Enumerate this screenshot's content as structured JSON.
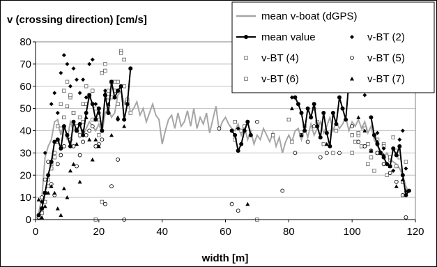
{
  "chart_data": {
    "type": "scatter",
    "ylabel": "v (crossing direction) [cm/s]",
    "xlabel": "width [m]",
    "xlim": [
      0,
      120
    ],
    "ylim": [
      0,
      80
    ],
    "xticks": [
      0,
      20,
      40,
      60,
      80,
      100,
      120
    ],
    "yticks": [
      0,
      10,
      20,
      30,
      40,
      50,
      60,
      70,
      80
    ],
    "grid": "horizontal",
    "legend_position": "top-right",
    "colors": {
      "boat": "#a6a6a6",
      "mean": "#000000",
      "markers": "#000000",
      "grid": "#bfbfbf"
    },
    "series": [
      {
        "name": "mean v-boat (dGPS)",
        "style": "line-gray",
        "x": [
          1,
          2,
          3,
          4,
          5,
          6,
          7,
          8,
          9,
          10,
          11,
          12,
          13,
          14,
          15,
          16,
          17,
          18,
          19,
          20,
          21,
          22,
          23,
          24,
          25,
          26,
          27,
          28,
          29,
          30,
          31,
          32,
          33,
          34,
          35,
          36,
          37,
          38,
          39,
          40,
          41,
          42,
          43,
          44,
          45,
          46,
          47,
          48,
          49,
          50,
          51,
          52,
          53,
          54,
          55,
          56,
          57,
          58,
          59,
          60,
          61,
          62,
          63,
          64,
          65,
          66,
          67,
          68,
          69,
          70,
          71,
          72,
          73,
          74,
          75,
          76,
          77,
          78,
          79,
          80,
          81,
          82,
          83,
          84,
          85,
          86,
          87,
          88,
          89,
          90,
          91,
          92,
          93,
          94,
          95,
          96,
          97,
          98,
          99,
          100,
          101,
          102,
          103,
          104,
          105,
          106,
          107,
          108,
          109,
          110,
          111,
          112,
          113,
          114,
          115,
          116,
          117,
          118
        ],
        "y": [
          3,
          10,
          28,
          33,
          36,
          44,
          45,
          38,
          43,
          36,
          44,
          40,
          42,
          37,
          38,
          41,
          44,
          42,
          40,
          43,
          39,
          48,
          50,
          46,
          48,
          56,
          58,
          52,
          55,
          48,
          50,
          53,
          47,
          50,
          44,
          48,
          52,
          47,
          45,
          34,
          40,
          45,
          47,
          41,
          48,
          42,
          44,
          49,
          42,
          50,
          41,
          46,
          43,
          48,
          39,
          45,
          51,
          40,
          44,
          46,
          43,
          41,
          40,
          43,
          38,
          42,
          36,
          40,
          34,
          38,
          36,
          41,
          38,
          35,
          39,
          33,
          37,
          30,
          35,
          38,
          35,
          40,
          41,
          36,
          42,
          37,
          43,
          38,
          41,
          44,
          39,
          42,
          46,
          40,
          44,
          41,
          43,
          46,
          40,
          44,
          42,
          45,
          41,
          44,
          39,
          42,
          36,
          33,
          31,
          28,
          30,
          27,
          26,
          25,
          23,
          20,
          15,
          12
        ]
      },
      {
        "name": "mean value",
        "style": "line-dots",
        "x": [
          1,
          2,
          3,
          4,
          5,
          6,
          7,
          8,
          9,
          10,
          11,
          12,
          13,
          14,
          15,
          16,
          17,
          18,
          19,
          20,
          21,
          22,
          23,
          24,
          25,
          26,
          27,
          28,
          29,
          30,
          62,
          63,
          64,
          65,
          66,
          67,
          68,
          82,
          83,
          84,
          85,
          86,
          87,
          88,
          89,
          90,
          91,
          92,
          93,
          94,
          95,
          96,
          97,
          98,
          99,
          106,
          107,
          108,
          109,
          110,
          111,
          112,
          113,
          114,
          115,
          116,
          117,
          118
        ],
        "y": [
          2,
          5,
          12,
          20,
          26,
          35,
          36,
          32,
          42,
          38,
          33,
          44,
          40,
          43,
          38,
          48,
          56,
          52,
          45,
          50,
          40,
          56,
          48,
          62,
          55,
          58,
          60,
          45,
          52,
          68,
          40,
          38,
          31,
          34,
          40,
          44,
          38,
          55,
          52,
          48,
          40,
          50,
          46,
          52,
          42,
          37,
          48,
          39,
          33,
          48,
          43,
          55,
          50,
          45,
          62,
          46,
          38,
          34,
          30,
          28,
          25,
          24,
          32,
          29,
          33,
          20,
          11,
          13
        ]
      },
      {
        "name": "v-BT (2)",
        "style": "diamond",
        "x": [
          1,
          2,
          3,
          4,
          5,
          6,
          7,
          8,
          9,
          10,
          11,
          12,
          13,
          14,
          15,
          16,
          17,
          18,
          19,
          20,
          21,
          22,
          26,
          64,
          81,
          96,
          104,
          108,
          110,
          113,
          115,
          116,
          117
        ],
        "y": [
          2,
          8,
          30,
          20,
          52,
          57,
          48,
          66,
          74,
          70,
          60,
          68,
          63,
          57,
          63,
          55,
          70,
          72,
          52,
          48,
          40,
          58,
          45,
          41,
          55,
          55,
          56,
          39,
          32,
          22,
          36,
          40,
          23
        ]
      },
      {
        "name": "v-BT (4)",
        "style": "square-gray",
        "x": [
          1,
          2,
          3,
          4,
          5,
          6,
          7,
          8,
          9,
          10,
          11,
          12,
          13,
          14,
          15,
          16,
          17,
          18,
          19,
          20,
          21,
          22,
          23,
          24,
          25,
          26,
          27,
          28,
          29,
          30,
          63,
          65,
          81,
          85,
          89,
          94,
          100,
          101,
          102,
          103,
          104,
          105,
          106,
          107,
          108,
          109,
          110,
          111,
          112,
          113,
          114,
          115,
          116,
          117
        ],
        "y": [
          1,
          5,
          12,
          18,
          25,
          30,
          42,
          52,
          58,
          62,
          55,
          48,
          40,
          46,
          52,
          60,
          56,
          45,
          50,
          38,
          66,
          70,
          58,
          55,
          62,
          52,
          76,
          60,
          54,
          48,
          36,
          40,
          35,
          42,
          44,
          30,
          30,
          35,
          38,
          33,
          41,
          25,
          28,
          22,
          36,
          30,
          34,
          20,
          27,
          37,
          31,
          28,
          17,
          26
        ]
      },
      {
        "name": "v-BT (5)",
        "style": "circle-open",
        "x": [
          1,
          2,
          3,
          4,
          5,
          6,
          7,
          8,
          9,
          10,
          11,
          12,
          13,
          14,
          15,
          16,
          17,
          18,
          19,
          20,
          21,
          22,
          24,
          26,
          28,
          58,
          62,
          64,
          70,
          78,
          82,
          84,
          86,
          88,
          90,
          92,
          96,
          100,
          102,
          104,
          106,
          108,
          110,
          112,
          114,
          116,
          117
        ],
        "y": [
          1,
          10,
          18,
          26,
          16,
          11,
          25,
          29,
          33,
          38,
          36,
          33,
          24,
          29,
          35,
          38,
          40,
          42,
          33,
          34,
          36,
          7,
          15,
          27,
          0,
          41,
          7,
          4,
          44,
          13,
          30,
          38,
          35,
          42,
          28,
          30,
          30,
          42,
          35,
          33,
          31,
          30,
          25,
          21,
          17,
          11,
          1
        ]
      },
      {
        "name": "v-BT (6)",
        "style": "square-open",
        "x": [
          2,
          3,
          4,
          5,
          6,
          7,
          8,
          9,
          10,
          11,
          12,
          13,
          14,
          15,
          16,
          17,
          18,
          19,
          20,
          21,
          22,
          23,
          24,
          25,
          26,
          27,
          28,
          29,
          63,
          66,
          70,
          75,
          80,
          84,
          88,
          91,
          95,
          100,
          102,
          105,
          108,
          110,
          112,
          114,
          116
        ],
        "y": [
          3,
          8,
          15,
          23,
          28,
          35,
          41,
          46,
          51,
          56,
          48,
          42,
          38,
          44,
          52,
          55,
          58,
          0,
          45,
          8,
          67,
          55,
          62,
          58,
          62,
          75,
          72,
          53,
          44,
          42,
          0,
          38,
          45,
          38,
          50,
          34,
          40,
          38,
          39,
          34,
          30,
          33,
          28,
          24,
          17
        ]
      },
      {
        "name": "v-BT (7)",
        "style": "triangle",
        "x": [
          1,
          2,
          3,
          4,
          5,
          6,
          7,
          8,
          9,
          10,
          11,
          12,
          13,
          14,
          15,
          16,
          17,
          18,
          19,
          20,
          21,
          22,
          23,
          24,
          26,
          28,
          67,
          81,
          84,
          92,
          102,
          104,
          106,
          108,
          110,
          112,
          114,
          116,
          117
        ],
        "y": [
          9,
          1,
          6,
          12,
          15,
          12,
          5,
          2,
          14,
          10,
          22,
          25,
          34,
          17,
          40,
          46,
          36,
          27,
          36,
          33,
          40,
          57,
          52,
          38,
          46,
          42,
          7,
          50,
          38,
          34,
          46,
          40,
          31,
          35,
          29,
          24,
          15,
          18,
          13
        ]
      }
    ]
  }
}
